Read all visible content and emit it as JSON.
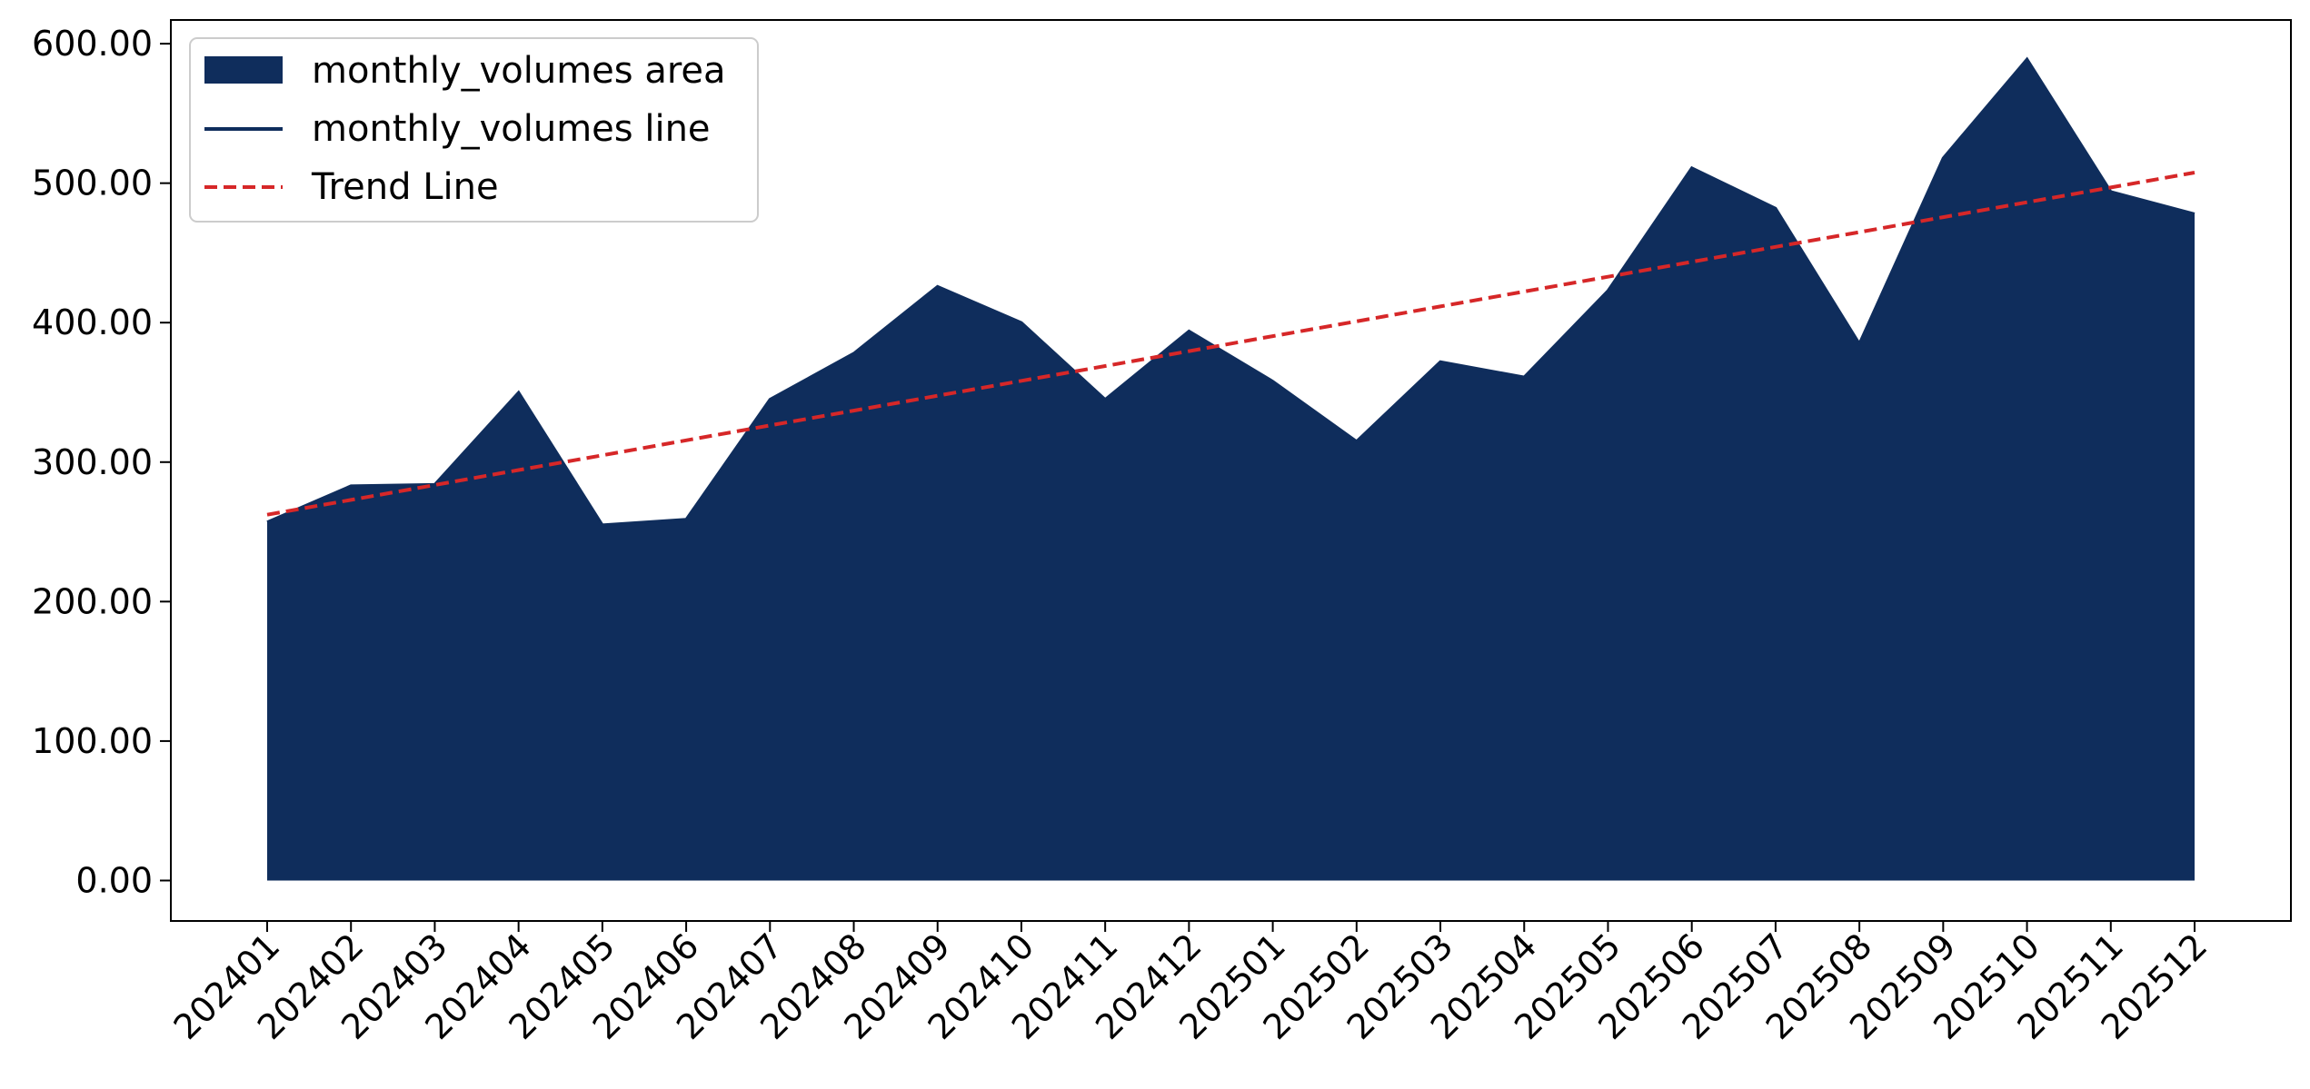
{
  "chart_data": {
    "type": "area",
    "title": "",
    "xlabel": "",
    "ylabel": "",
    "categories": [
      "202401",
      "202402",
      "202403",
      "202404",
      "202405",
      "202406",
      "202407",
      "202408",
      "202409",
      "202410",
      "202411",
      "202412",
      "202501",
      "202502",
      "202503",
      "202504",
      "202505",
      "202506",
      "202507",
      "202508",
      "202509",
      "202510",
      "202511",
      "202512"
    ],
    "series": [
      {
        "name": "monthly_volumes area",
        "kind": "area",
        "color": "#0f2d5c",
        "values": [
          257,
          283,
          284,
          350,
          255,
          259,
          345,
          378,
          426,
          400,
          345,
          394,
          358,
          315,
          372,
          361,
          423,
          511,
          482,
          385,
          518,
          589,
          494,
          478
        ]
      },
      {
        "name": "monthly_volumes line",
        "kind": "line",
        "color": "#0f2d5c",
        "values": [
          257,
          283,
          284,
          350,
          255,
          259,
          345,
          378,
          426,
          400,
          345,
          394,
          358,
          315,
          372,
          361,
          423,
          511,
          482,
          385,
          518,
          589,
          494,
          478
        ]
      },
      {
        "name": "Trend Line",
        "kind": "line",
        "style": "dashed",
        "color": "#d62728",
        "values": [
          262.3,
          272.9,
          283.6,
          294.3,
          304.9,
          315.6,
          326.3,
          336.9,
          347.6,
          358.3,
          368.9,
          379.6,
          390.3,
          400.9,
          411.6,
          422.3,
          432.9,
          443.6,
          454.3,
          464.9,
          475.6,
          486.3,
          496.9,
          507.6
        ]
      }
    ],
    "ylim": [
      -29,
      617
    ],
    "yticks": [
      "0.00",
      "100.00",
      "200.00",
      "300.00",
      "400.00",
      "500.00",
      "600.00"
    ],
    "ytick_values": [
      0,
      100,
      200,
      300,
      400,
      500,
      600
    ],
    "grid": false,
    "legend_position": "upper-left"
  }
}
